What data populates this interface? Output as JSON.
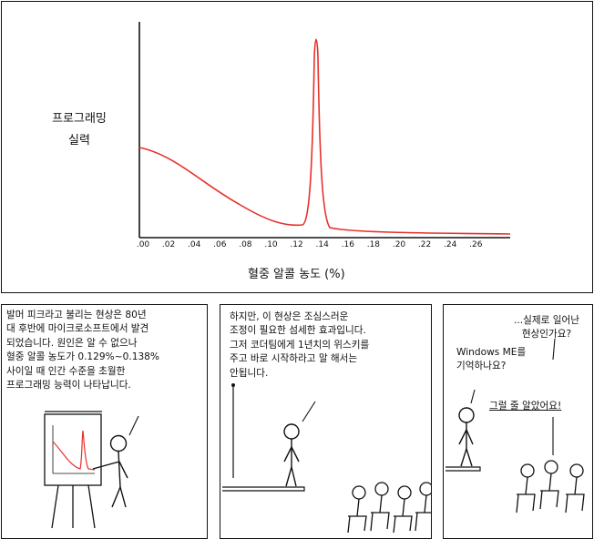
{
  "top_panel": {
    "y_label": "프로그래밍\n실력",
    "x_label": "혈중 알콜 농도 (%)",
    "ticks": [
      ".00",
      ".02",
      ".04",
      ".06",
      ".08",
      ".10",
      ".12",
      ".14",
      ".16",
      ".18",
      ".20",
      ".22",
      ".24",
      ".26"
    ],
    "curve_color": "#e8302b"
  },
  "panel_1": {
    "caption": "발머 피크라고 불리는 현상은 80년\n대 후반에 마이크로소프트에서 발견\n되었습니다. 원인은 알 수 없으나\n혈중 알콜 농도가 0.129%~0.138%\n사이일 때 인간 수준을 초월한\n프로그래밍 능력이 나타납니다."
  },
  "panel_2": {
    "caption": "하지만, 이 현상은 조심스러운\n조정이 필요한 섬세한 효과입니다.\n그저 코더팀에게 1년치의 위스키를\n주고 바로 시작하라고 말 해서는\n안됩니다."
  },
  "panel_3": {
    "line_1": "...실제로 일어난\n현상인가요?",
    "line_2": "Windows ME를\n기억하나요?",
    "line_3": "그럴 줄 알았어요!"
  }
}
